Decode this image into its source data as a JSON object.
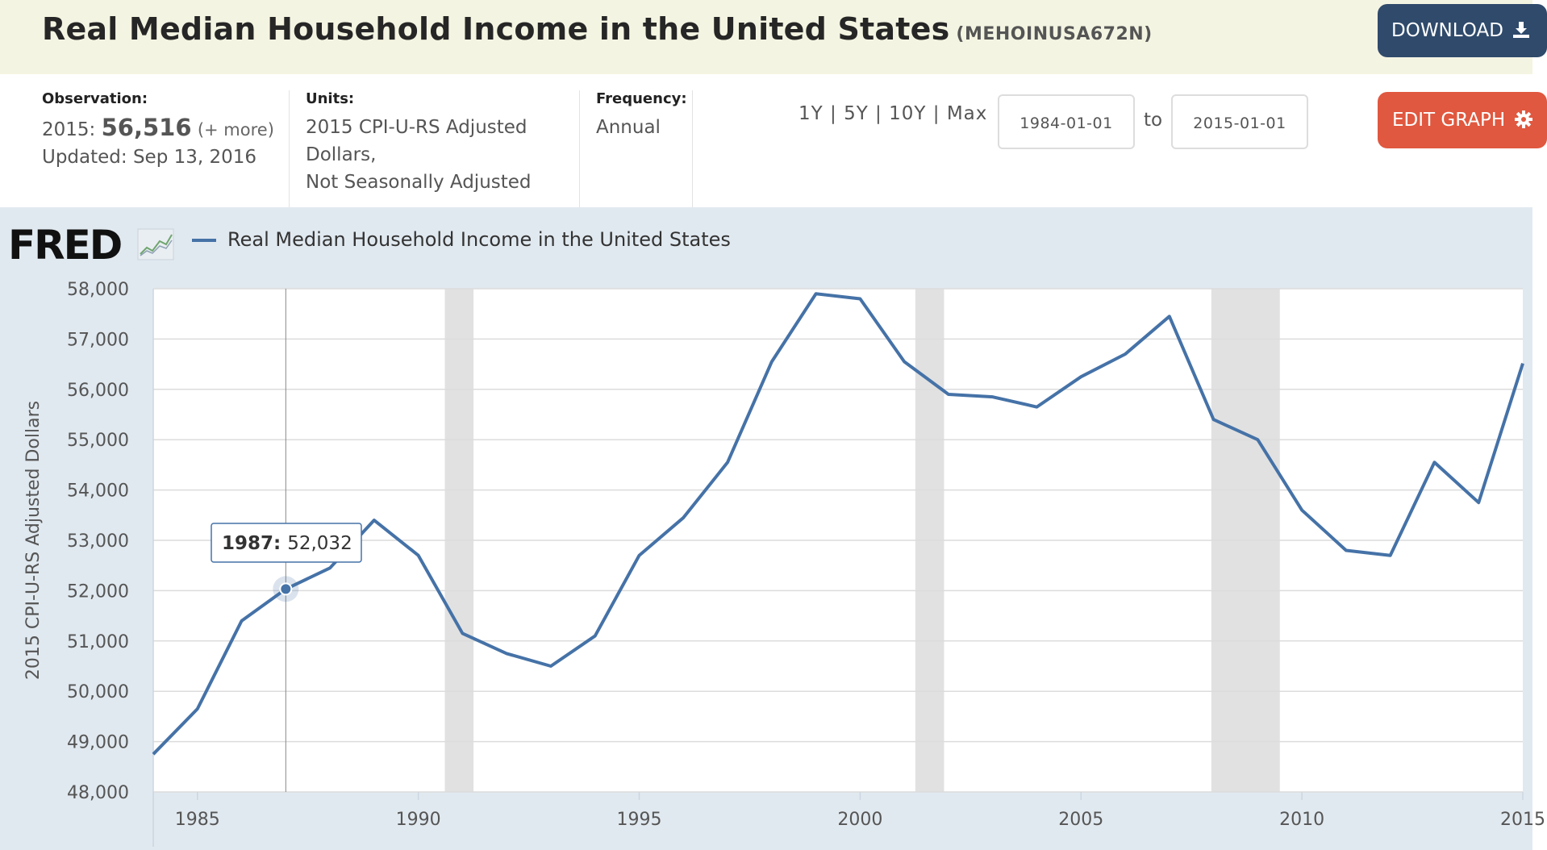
{
  "header": {
    "title": "Real Median Household Income in the United States",
    "series_id": "(MEHOINUSA672N)",
    "download_label": "DOWNLOAD"
  },
  "info": {
    "observation_label": "Observation:",
    "observation_year": "2015:",
    "observation_value": "56,516",
    "observation_more": "(+ more)",
    "updated": "Updated: Sep 13, 2016",
    "units_label": "Units:",
    "units_line1": "2015 CPI-U-RS Adjusted",
    "units_line2": "Dollars,",
    "units_line3": "Not Seasonally Adjusted",
    "frequency_label": "Frequency:",
    "frequency_value": "Annual",
    "ranges": [
      "1Y",
      "5Y",
      "10Y",
      "Max"
    ],
    "start_date": "1984-01-01",
    "to_label": "to",
    "end_date": "2015-01-01",
    "edit_label": "EDIT GRAPH"
  },
  "graph": {
    "logo_text": "FRED",
    "legend_label": "Real Median Household Income in the United States"
  },
  "chart_data": {
    "type": "line",
    "title": "",
    "xlabel": "",
    "ylabel": "2015 CPI-U-RS Adjusted Dollars",
    "x": [
      1984,
      1985,
      1986,
      1987,
      1988,
      1989,
      1990,
      1991,
      1992,
      1993,
      1994,
      1995,
      1996,
      1997,
      1998,
      1999,
      2000,
      2001,
      2002,
      2003,
      2004,
      2005,
      2006,
      2007,
      2008,
      2009,
      2010,
      2011,
      2012,
      2013,
      2014,
      2015
    ],
    "series": [
      {
        "name": "Real Median Household Income in the United States",
        "color": "#4572a7",
        "values": [
          48750,
          49650,
          51400,
          52032,
          52450,
          53400,
          52700,
          51150,
          50750,
          50500,
          51100,
          52700,
          53450,
          54550,
          56550,
          57900,
          57800,
          56550,
          55900,
          55850,
          55650,
          56250,
          56700,
          57450,
          55400,
          55000,
          53600,
          52800,
          52700,
          54550,
          53750,
          56516
        ]
      }
    ],
    "xlim": [
      1984,
      2015
    ],
    "ylim": [
      48000,
      58000
    ],
    "yticks": [
      48000,
      49000,
      50000,
      51000,
      52000,
      53000,
      54000,
      55000,
      56000,
      57000,
      58000
    ],
    "ytick_labels": [
      "48,000",
      "49,000",
      "50,000",
      "51,000",
      "52,000",
      "53,000",
      "54,000",
      "55,000",
      "56,000",
      "57,000",
      "58,000"
    ],
    "xticks": [
      1985,
      1990,
      1995,
      2000,
      2005,
      2010,
      2015
    ],
    "xtick_labels": [
      "1985",
      "1990",
      "1995",
      "2000",
      "2005",
      "2010",
      "2015"
    ],
    "recessions": [
      [
        1990.6,
        1991.25
      ],
      [
        2001.25,
        2001.9
      ],
      [
        2007.95,
        2009.5
      ]
    ],
    "grid": true,
    "legend": "top-left",
    "tooltip": {
      "x": 1987,
      "year_label": "1987:",
      "value_label": "52,032"
    }
  }
}
